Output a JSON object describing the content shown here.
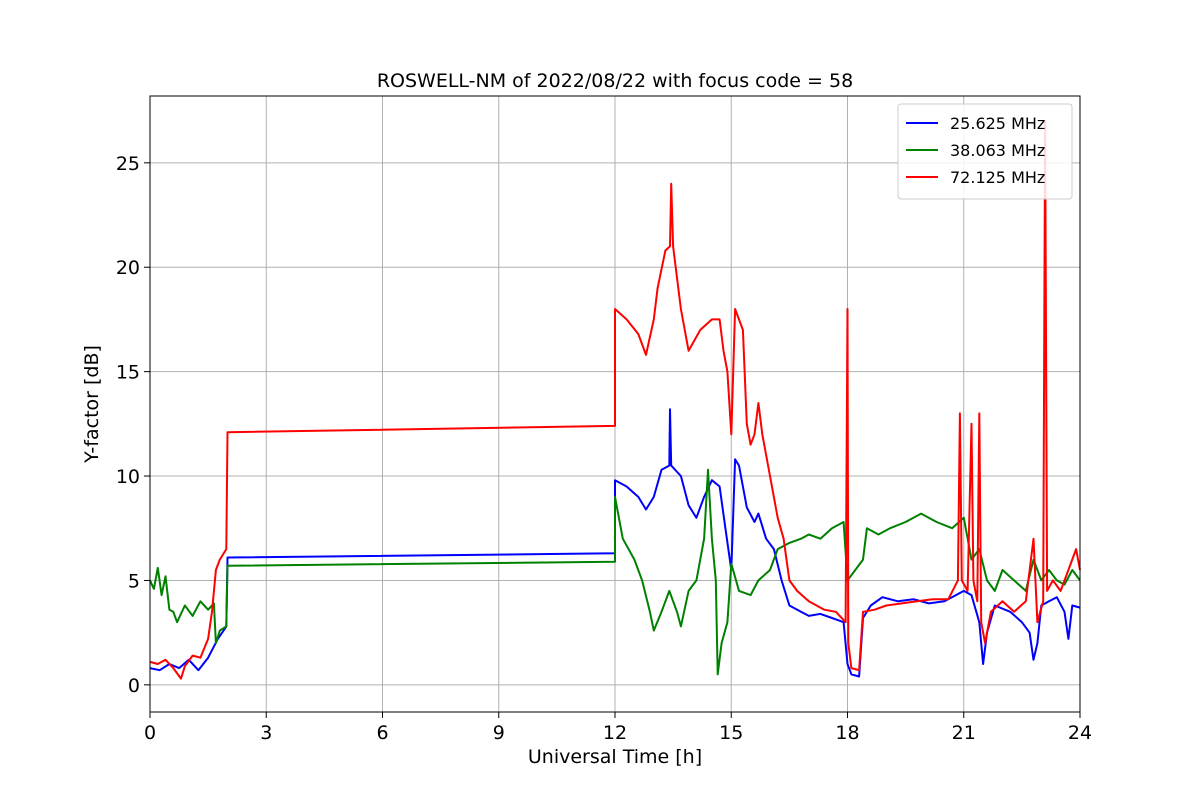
{
  "chart_data": {
    "type": "line",
    "title": "ROSWELL-NM of 2022/08/22 with focus code = 58",
    "xlabel": "Universal Time [h]",
    "ylabel": "Y-factor [dB]",
    "xlim": [
      0,
      24
    ],
    "ylim": [
      -1.3,
      28.2
    ],
    "xticks": [
      0,
      3,
      6,
      9,
      12,
      15,
      18,
      21,
      24
    ],
    "yticks": [
      0,
      5,
      10,
      15,
      20,
      25
    ],
    "grid": true,
    "legend_position": "top-right",
    "series": [
      {
        "name": "25.625 MHz",
        "color": "#0000ff",
        "points": [
          [
            0,
            0.8
          ],
          [
            0.25,
            0.7
          ],
          [
            0.5,
            1.0
          ],
          [
            0.75,
            0.8
          ],
          [
            1.0,
            1.2
          ],
          [
            1.25,
            0.7
          ],
          [
            1.5,
            1.3
          ],
          [
            1.75,
            2.2
          ],
          [
            1.9,
            2.6
          ],
          [
            1.97,
            2.8
          ],
          [
            2.0,
            6.1
          ],
          [
            12.0,
            6.3
          ],
          [
            12.0,
            9.8
          ],
          [
            12.3,
            9.5
          ],
          [
            12.6,
            9.0
          ],
          [
            12.8,
            8.4
          ],
          [
            13.0,
            9.0
          ],
          [
            13.2,
            10.3
          ],
          [
            13.4,
            10.5
          ],
          [
            13.42,
            13.2
          ],
          [
            13.45,
            10.5
          ],
          [
            13.7,
            10.0
          ],
          [
            13.9,
            8.6
          ],
          [
            14.1,
            8.0
          ],
          [
            14.3,
            9.0
          ],
          [
            14.5,
            9.8
          ],
          [
            14.7,
            9.5
          ],
          [
            14.85,
            7.5
          ],
          [
            15.0,
            5.5
          ],
          [
            15.1,
            10.8
          ],
          [
            15.2,
            10.5
          ],
          [
            15.4,
            8.5
          ],
          [
            15.6,
            7.8
          ],
          [
            15.7,
            8.2
          ],
          [
            15.9,
            7.0
          ],
          [
            16.1,
            6.5
          ],
          [
            16.3,
            5.0
          ],
          [
            16.5,
            3.8
          ],
          [
            16.8,
            3.5
          ],
          [
            17.0,
            3.3
          ],
          [
            17.3,
            3.4
          ],
          [
            17.6,
            3.2
          ],
          [
            17.9,
            3.0
          ],
          [
            18.0,
            1.0
          ],
          [
            18.1,
            0.5
          ],
          [
            18.3,
            0.4
          ],
          [
            18.4,
            3.2
          ],
          [
            18.6,
            3.8
          ],
          [
            18.9,
            4.2
          ],
          [
            19.3,
            4.0
          ],
          [
            19.7,
            4.1
          ],
          [
            20.1,
            3.9
          ],
          [
            20.5,
            4.0
          ],
          [
            20.8,
            4.3
          ],
          [
            21.0,
            4.5
          ],
          [
            21.2,
            4.3
          ],
          [
            21.4,
            3.0
          ],
          [
            21.5,
            1.0
          ],
          [
            21.6,
            2.5
          ],
          [
            21.8,
            3.8
          ],
          [
            22.2,
            3.5
          ],
          [
            22.5,
            3.0
          ],
          [
            22.7,
            2.5
          ],
          [
            22.8,
            1.2
          ],
          [
            22.9,
            2.0
          ],
          [
            23.0,
            3.8
          ],
          [
            23.2,
            4.0
          ],
          [
            23.4,
            4.2
          ],
          [
            23.6,
            3.5
          ],
          [
            23.7,
            2.2
          ],
          [
            23.8,
            3.8
          ],
          [
            24.0,
            3.7
          ]
        ]
      },
      {
        "name": "38.063 MHz",
        "color": "#008000",
        "points": [
          [
            0,
            5.0
          ],
          [
            0.1,
            4.6
          ],
          [
            0.2,
            5.6
          ],
          [
            0.3,
            4.3
          ],
          [
            0.4,
            5.2
          ],
          [
            0.5,
            3.6
          ],
          [
            0.6,
            3.5
          ],
          [
            0.7,
            3.0
          ],
          [
            0.9,
            3.8
          ],
          [
            1.1,
            3.3
          ],
          [
            1.3,
            4.0
          ],
          [
            1.5,
            3.6
          ],
          [
            1.65,
            3.9
          ],
          [
            1.7,
            2.0
          ],
          [
            1.8,
            2.6
          ],
          [
            1.97,
            2.8
          ],
          [
            2.0,
            5.7
          ],
          [
            12.0,
            5.9
          ],
          [
            12.0,
            9.0
          ],
          [
            12.2,
            7.0
          ],
          [
            12.5,
            6.0
          ],
          [
            12.7,
            5.0
          ],
          [
            12.9,
            3.5
          ],
          [
            13.0,
            2.6
          ],
          [
            13.2,
            3.5
          ],
          [
            13.4,
            4.5
          ],
          [
            13.6,
            3.5
          ],
          [
            13.7,
            2.8
          ],
          [
            13.9,
            4.5
          ],
          [
            14.1,
            5.0
          ],
          [
            14.3,
            7.0
          ],
          [
            14.4,
            10.3
          ],
          [
            14.5,
            7.0
          ],
          [
            14.6,
            5.0
          ],
          [
            14.65,
            0.5
          ],
          [
            14.75,
            2.0
          ],
          [
            14.9,
            3.0
          ],
          [
            15.0,
            5.8
          ],
          [
            15.2,
            4.5
          ],
          [
            15.5,
            4.3
          ],
          [
            15.7,
            5.0
          ],
          [
            16.0,
            5.5
          ],
          [
            16.2,
            6.5
          ],
          [
            16.5,
            6.8
          ],
          [
            16.8,
            7.0
          ],
          [
            17.0,
            7.2
          ],
          [
            17.3,
            7.0
          ],
          [
            17.6,
            7.5
          ],
          [
            17.9,
            7.8
          ],
          [
            18.0,
            5.0
          ],
          [
            18.2,
            5.5
          ],
          [
            18.4,
            6.0
          ],
          [
            18.5,
            7.5
          ],
          [
            18.8,
            7.2
          ],
          [
            19.1,
            7.5
          ],
          [
            19.5,
            7.8
          ],
          [
            19.9,
            8.2
          ],
          [
            20.3,
            7.8
          ],
          [
            20.7,
            7.5
          ],
          [
            21.0,
            8.0
          ],
          [
            21.2,
            6.0
          ],
          [
            21.4,
            6.5
          ],
          [
            21.6,
            5.0
          ],
          [
            21.8,
            4.5
          ],
          [
            22.0,
            5.5
          ],
          [
            22.3,
            5.0
          ],
          [
            22.6,
            4.5
          ],
          [
            22.8,
            6.0
          ],
          [
            23.0,
            5.0
          ],
          [
            23.2,
            5.5
          ],
          [
            23.4,
            5.0
          ],
          [
            23.6,
            4.8
          ],
          [
            23.8,
            5.5
          ],
          [
            24.0,
            5.0
          ]
        ]
      },
      {
        "name": "72.125 MHz",
        "color": "#ff0000",
        "points": [
          [
            0,
            1.1
          ],
          [
            0.2,
            1.0
          ],
          [
            0.4,
            1.2
          ],
          [
            0.6,
            0.8
          ],
          [
            0.8,
            0.3
          ],
          [
            0.9,
            0.9
          ],
          [
            1.1,
            1.4
          ],
          [
            1.3,
            1.3
          ],
          [
            1.5,
            2.2
          ],
          [
            1.6,
            3.5
          ],
          [
            1.7,
            5.5
          ],
          [
            1.8,
            6.0
          ],
          [
            1.97,
            6.5
          ],
          [
            2.0,
            12.1
          ],
          [
            12.0,
            12.4
          ],
          [
            12.0,
            18.0
          ],
          [
            12.3,
            17.5
          ],
          [
            12.6,
            16.8
          ],
          [
            12.8,
            15.8
          ],
          [
            13.0,
            17.5
          ],
          [
            13.1,
            19.0
          ],
          [
            13.3,
            20.8
          ],
          [
            13.42,
            21.0
          ],
          [
            13.45,
            24.0
          ],
          [
            13.5,
            21.0
          ],
          [
            13.7,
            18.0
          ],
          [
            13.9,
            16.0
          ],
          [
            14.2,
            17.0
          ],
          [
            14.5,
            17.5
          ],
          [
            14.7,
            17.5
          ],
          [
            14.8,
            16.0
          ],
          [
            14.9,
            15.0
          ],
          [
            15.0,
            12.0
          ],
          [
            15.1,
            18.0
          ],
          [
            15.3,
            17.0
          ],
          [
            15.4,
            12.5
          ],
          [
            15.5,
            11.5
          ],
          [
            15.6,
            12.0
          ],
          [
            15.7,
            13.5
          ],
          [
            15.8,
            12.0
          ],
          [
            16.0,
            10.0
          ],
          [
            16.2,
            8.0
          ],
          [
            16.35,
            7.0
          ],
          [
            16.5,
            5.0
          ],
          [
            16.7,
            4.5
          ],
          [
            17.0,
            4.0
          ],
          [
            17.4,
            3.6
          ],
          [
            17.7,
            3.5
          ],
          [
            17.95,
            3.0
          ],
          [
            18.0,
            18.0
          ],
          [
            18.02,
            2.0
          ],
          [
            18.1,
            0.8
          ],
          [
            18.3,
            0.7
          ],
          [
            18.4,
            3.5
          ],
          [
            18.7,
            3.6
          ],
          [
            19.0,
            3.8
          ],
          [
            19.4,
            3.9
          ],
          [
            19.8,
            4.0
          ],
          [
            20.2,
            4.1
          ],
          [
            20.6,
            4.1
          ],
          [
            20.85,
            5.0
          ],
          [
            20.9,
            13.0
          ],
          [
            20.95,
            5.0
          ],
          [
            21.1,
            4.5
          ],
          [
            21.2,
            12.5
          ],
          [
            21.25,
            5.0
          ],
          [
            21.35,
            4.0
          ],
          [
            21.4,
            13.0
          ],
          [
            21.45,
            3.0
          ],
          [
            21.55,
            2.0
          ],
          [
            21.7,
            3.5
          ],
          [
            22.0,
            4.0
          ],
          [
            22.3,
            3.5
          ],
          [
            22.6,
            4.0
          ],
          [
            22.8,
            7.0
          ],
          [
            22.9,
            3.0
          ],
          [
            23.05,
            4.0
          ],
          [
            23.1,
            27.0
          ],
          [
            23.15,
            4.5
          ],
          [
            23.3,
            5.0
          ],
          [
            23.5,
            4.5
          ],
          [
            23.7,
            5.5
          ],
          [
            23.9,
            6.5
          ],
          [
            24.0,
            5.5
          ]
        ]
      }
    ]
  }
}
